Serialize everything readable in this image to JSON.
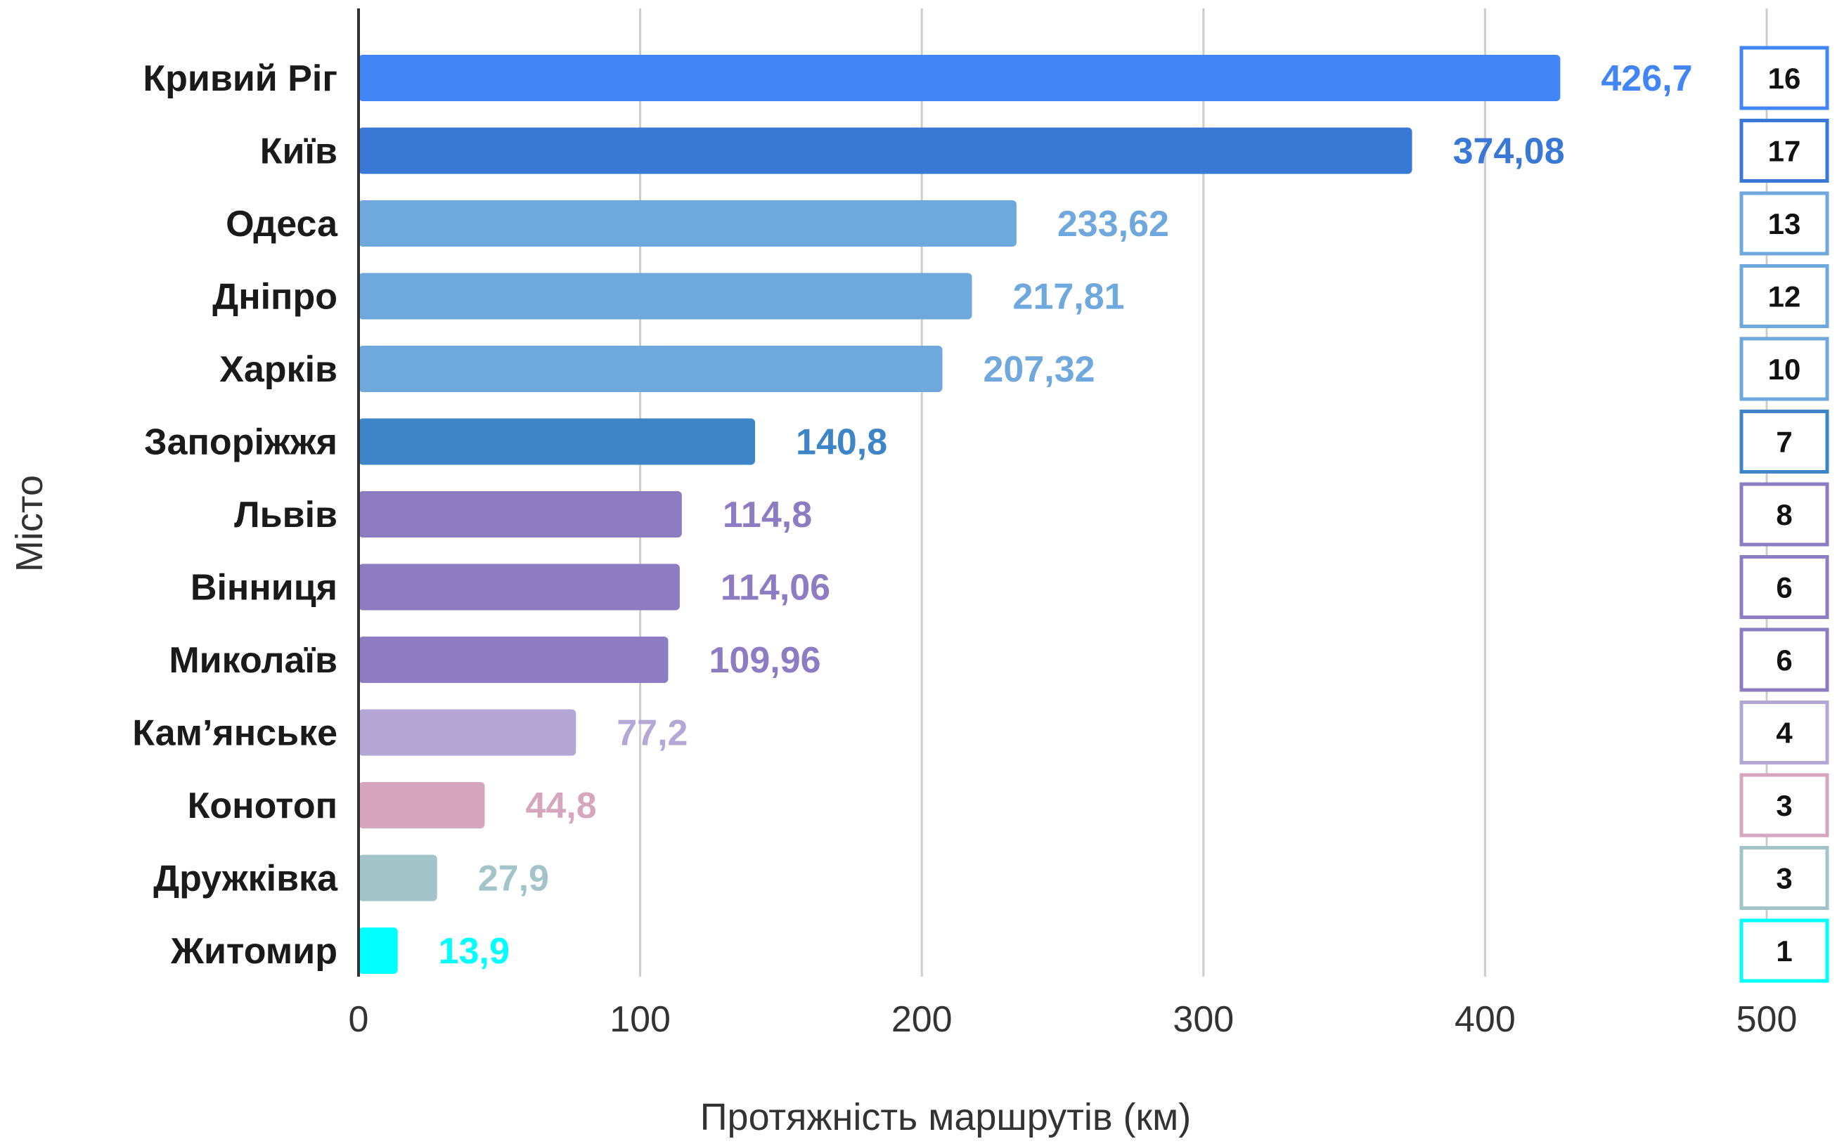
{
  "chart_data": {
    "type": "bar",
    "orientation": "horizontal",
    "xlabel": "Протяжність маршрутів (км)",
    "ylabel": "Місто",
    "xlim": [
      0,
      500
    ],
    "x_ticks": [
      "0",
      "100",
      "200",
      "300",
      "400",
      "500"
    ],
    "grid": true,
    "categories": [
      "Кривий Ріг",
      "Київ",
      "Одеса",
      "Дніпро",
      "Харків",
      "Запоріжжя",
      "Львів",
      "Вінниця",
      "Миколаїв",
      "Кам’янське",
      "Конотоп",
      "Дружківка",
      "Житомир"
    ],
    "values": [
      426.7,
      374.08,
      233.62,
      217.81,
      207.32,
      140.8,
      114.8,
      114.06,
      109.96,
      77.2,
      44.8,
      27.9,
      13.9
    ],
    "value_labels": [
      "426,7",
      "374,08",
      "233,62",
      "217,81",
      "207,32",
      "140,8",
      "114,8",
      "114,06",
      "109,96",
      "77,2",
      "44,8",
      "27,9",
      "13,9"
    ],
    "counts": [
      "16",
      "17",
      "13",
      "12",
      "10",
      "7",
      "8",
      "6",
      "6",
      "4",
      "3",
      "3",
      "1"
    ],
    "colors": [
      "#4285f4",
      "#3a78d6",
      "#6fa8dc",
      "#6fa8dc",
      "#6fa8dc",
      "#3d85c6",
      "#8e7cc3",
      "#8e7cc3",
      "#8e7cc3",
      "#b4a7d6",
      "#d5a6bd",
      "#a2c4c9",
      "#00ffff"
    ]
  }
}
